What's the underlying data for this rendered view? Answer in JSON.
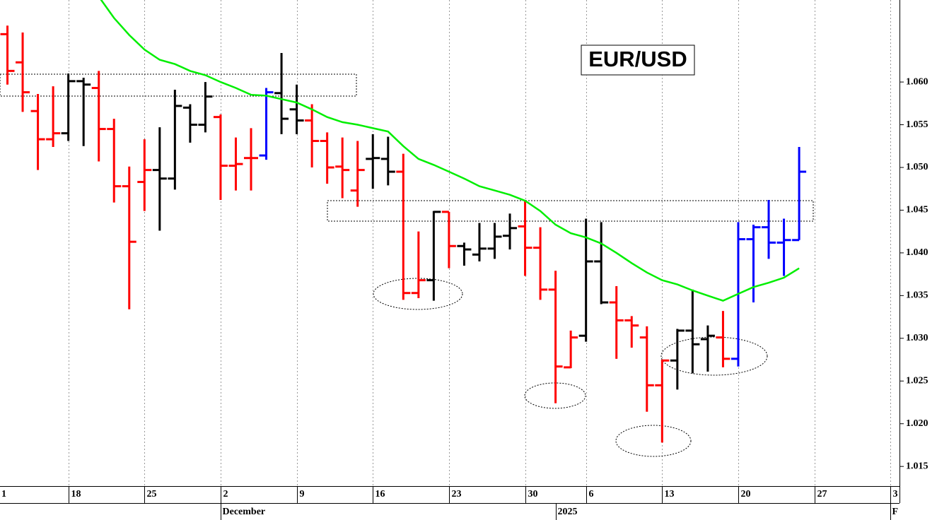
{
  "chart_data": {
    "type": "ohlc",
    "title": "EUR/USD",
    "categories": [
      "1",
      null,
      null,
      null,
      null,
      "18",
      null,
      null,
      null,
      null,
      "25",
      null,
      null,
      null,
      null,
      "2",
      null,
      null,
      null,
      null,
      "9",
      null,
      null,
      null,
      null,
      "16",
      null,
      null,
      null,
      null,
      "23",
      null,
      null,
      null,
      null,
      "30",
      null,
      null,
      null,
      "6",
      null,
      null,
      null,
      null,
      "13",
      null,
      null,
      null,
      null,
      "20",
      null,
      null,
      null,
      null,
      "27",
      null,
      null,
      null,
      null,
      "3"
    ],
    "x_groups": [
      null,
      null,
      null,
      null,
      null,
      null,
      null,
      null,
      null,
      null,
      null,
      null,
      null,
      null,
      null,
      "December",
      null,
      null,
      null,
      null,
      null,
      null,
      null,
      null,
      null,
      null,
      null,
      null,
      null,
      null,
      null,
      null,
      null,
      null,
      null,
      null,
      null,
      "2025",
      null,
      null,
      null,
      null,
      null,
      null,
      null,
      null,
      null,
      null,
      null,
      null,
      null,
      null,
      null,
      null,
      null,
      null,
      null,
      null,
      null,
      "F"
    ],
    "open": [
      null,
      1.0656,
      1.0623,
      1.0566,
      1.0533,
      1.054,
      1.0601,
      1.0593,
      1.0545,
      1.0478,
      1.0483,
      1.0497,
      1.0487,
      1.057,
      1.055,
      1.0559,
      1.0502,
      1.0511,
      1.0514,
      1.0587,
      1.0568,
      1.0555,
      1.0531,
      1.0501,
      1.0473,
      1.051,
      1.051,
      1.0495,
      1.0353,
      1.0368,
      1.0448,
      1.0408,
      1.0398,
      1.0405,
      1.042,
      1.0431,
      1.0406,
      1.0357,
      1.0266,
      1.0303,
      1.039,
      1.0342,
      1.0321,
      1.0301,
      1.0245,
      1.0274,
      1.0309,
      1.0299,
      1.0301,
      1.0276,
      1.0416,
      1.043,
      1.0412,
      1.0415,
      null,
      null,
      null,
      null,
      null,
      null
    ],
    "high": [
      null,
      1.0666,
      1.0658,
      1.0586,
      1.0595,
      1.061,
      1.0605,
      1.0613,
      1.0557,
      1.0501,
      1.0533,
      1.0547,
      1.0591,
      1.0574,
      1.06,
      1.0562,
      1.0535,
      1.0546,
      1.0593,
      1.0634,
      1.0597,
      1.0574,
      1.0541,
      1.0535,
      1.0531,
      1.0539,
      1.0536,
      1.0516,
      1.0425,
      1.0449,
      1.0448,
      1.0412,
      1.0435,
      1.0435,
      1.0446,
      1.0462,
      1.043,
      1.0379,
      1.0309,
      1.044,
      1.0436,
      1.0361,
      1.0326,
      1.0314,
      1.0275,
      1.0311,
      1.0357,
      1.0315,
      1.0332,
      1.0436,
      1.0433,
      1.0462,
      1.044,
      1.0524,
      null,
      null,
      null,
      null,
      null,
      null
    ],
    "low": [
      null,
      1.0597,
      1.0565,
      1.0497,
      1.0524,
      1.0531,
      1.0525,
      1.0507,
      1.0459,
      1.0334,
      1.0449,
      1.0426,
      1.0474,
      1.0529,
      1.0541,
      1.0462,
      1.0473,
      1.0473,
      1.0509,
      1.0539,
      1.0539,
      1.05,
      1.0481,
      1.0464,
      1.0454,
      1.0475,
      1.0479,
      1.0345,
      1.0347,
      1.0344,
      1.0382,
      1.0385,
      1.039,
      1.0393,
      1.0404,
      1.0373,
      1.0345,
      1.0224,
      1.0265,
      1.0296,
      1.034,
      1.0276,
      1.0289,
      1.0214,
      1.0178,
      1.024,
      1.0259,
      1.0261,
      1.0266,
      1.0267,
      1.0342,
      1.0393,
      1.0373,
      1.0415,
      null,
      null,
      null,
      null,
      null,
      null
    ],
    "close": [
      null,
      1.0613,
      1.0588,
      1.0533,
      1.054,
      1.0601,
      1.0597,
      1.0545,
      1.0478,
      1.0413,
      1.0497,
      1.0487,
      1.0572,
      1.055,
      1.0583,
      1.0502,
      1.0504,
      1.0511,
      1.0588,
      1.0557,
      1.0555,
      1.0531,
      1.05,
      1.0497,
      1.0497,
      1.0511,
      1.0495,
      1.0353,
      1.0368,
      1.0448,
      1.0408,
      1.0404,
      1.0405,
      1.0419,
      1.0429,
      1.0406,
      1.0357,
      1.0267,
      1.0301,
      1.039,
      1.0342,
      1.0321,
      1.0315,
      1.0245,
      1.0274,
      1.0309,
      1.0293,
      1.0303,
      1.0276,
      1.0416,
      1.043,
      1.0412,
      1.0415,
      1.0495,
      null,
      null,
      null,
      null,
      null,
      null
    ],
    "colors": [
      null,
      "#ff0000",
      "#ff0000",
      "#ff0000",
      "#ff0000",
      "#000000",
      "#000000",
      "#ff0000",
      "#ff0000",
      "#ff0000",
      "#ff0000",
      "#000000",
      "#000000",
      "#000000",
      "#000000",
      "#ff0000",
      "#ff0000",
      "#ff0000",
      "#0000ff",
      "#000000",
      "#000000",
      "#ff0000",
      "#ff0000",
      "#ff0000",
      "#ff0000",
      "#000000",
      "#000000",
      "#ff0000",
      "#ff0000",
      "#000000",
      "#ff0000",
      "#000000",
      "#000000",
      "#000000",
      "#000000",
      "#ff0000",
      "#ff0000",
      "#ff0000",
      "#ff0000",
      "#000000",
      "#000000",
      "#ff0000",
      "#ff0000",
      "#ff0000",
      "#ff0000",
      "#000000",
      "#000000",
      "#000000",
      "#ff0000",
      "#0000ff",
      "#0000ff",
      "#0000ff",
      "#0000ff",
      "#0000ff",
      null,
      null,
      null,
      null,
      null,
      null
    ],
    "moving_average": {
      "color": "#00ee00",
      "values": [
        null,
        null,
        null,
        null,
        null,
        null,
        null,
        1.07,
        1.0675,
        1.0655,
        1.0638,
        1.0626,
        1.0621,
        1.0613,
        1.0608,
        1.06,
        1.0593,
        1.0585,
        1.0584,
        1.058,
        1.0576,
        1.0568,
        1.0559,
        1.0553,
        1.055,
        1.0546,
        1.0542,
        1.0525,
        1.051,
        1.0503,
        1.0495,
        1.0487,
        1.0478,
        1.0473,
        1.0468,
        1.0461,
        1.0449,
        1.0433,
        1.0423,
        1.0418,
        1.0411,
        1.04,
        1.0388,
        1.0377,
        1.0368,
        1.0363,
        1.0356,
        1.035,
        1.0344,
        1.0352,
        1.036,
        1.0365,
        1.0371,
        1.0382,
        null,
        null,
        null,
        null,
        null,
        null
      ]
    },
    "ylim": [
      1.0127,
      1.0696
    ],
    "yticks": [
      1.015,
      {
        "value": 1.02,
        "label": "1.020"
      },
      1.025,
      {
        "value": 1.03,
        "label": "1.030"
      },
      1.035,
      {
        "value": 1.04,
        "label": "1.040"
      },
      1.045,
      {
        "value": 1.05,
        "label": "1.050"
      },
      1.055,
      {
        "value": 1.06,
        "label": "1.060"
      }
    ],
    "grid": true
  }
}
